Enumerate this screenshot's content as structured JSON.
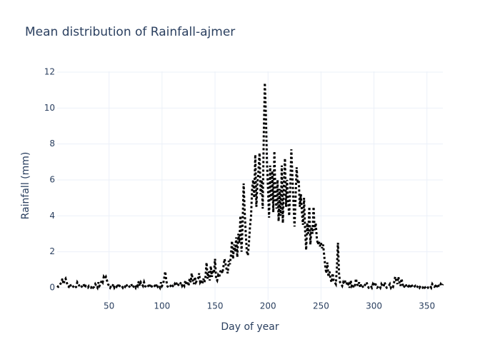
{
  "chart_data": {
    "type": "line",
    "title": "Mean distribution of Rainfall-ajmer",
    "x_label": "Day of year",
    "y_label": "Rainfall (mm)",
    "color": "#000000",
    "dash": "dot",
    "grid": true,
    "xlim": [
      1,
      365
    ],
    "ylim": [
      -0.68,
      12.04
    ],
    "xticks": [
      50,
      100,
      150,
      200,
      250,
      300,
      350
    ],
    "yticks": [
      0,
      2,
      4,
      6,
      8,
      10,
      12
    ],
    "x": [
      1,
      2,
      3,
      4,
      5,
      6,
      7,
      8,
      9,
      10,
      11,
      12,
      13,
      14,
      15,
      16,
      17,
      18,
      19,
      20,
      21,
      22,
      23,
      24,
      25,
      26,
      27,
      28,
      29,
      30,
      31,
      32,
      33,
      34,
      35,
      36,
      37,
      38,
      39,
      40,
      41,
      42,
      43,
      44,
      45,
      46,
      47,
      48,
      49,
      50,
      51,
      52,
      53,
      54,
      55,
      56,
      57,
      58,
      59,
      60,
      61,
      62,
      63,
      64,
      65,
      66,
      67,
      68,
      69,
      70,
      71,
      72,
      73,
      74,
      75,
      76,
      77,
      78,
      79,
      80,
      81,
      82,
      83,
      84,
      85,
      86,
      87,
      88,
      89,
      90,
      91,
      92,
      93,
      94,
      95,
      96,
      97,
      98,
      99,
      100,
      101,
      102,
      103,
      104,
      105,
      106,
      107,
      108,
      109,
      110,
      111,
      112,
      113,
      114,
      115,
      116,
      117,
      118,
      119,
      120,
      121,
      122,
      123,
      124,
      125,
      126,
      127,
      128,
      129,
      130,
      131,
      132,
      133,
      134,
      135,
      136,
      137,
      138,
      139,
      140,
      141,
      142,
      143,
      144,
      145,
      146,
      147,
      148,
      149,
      150,
      151,
      152,
      153,
      154,
      155,
      156,
      157,
      158,
      159,
      160,
      161,
      162,
      163,
      164,
      165,
      166,
      167,
      168,
      169,
      170,
      171,
      172,
      173,
      174,
      175,
      176,
      177,
      178,
      179,
      180,
      181,
      182,
      183,
      184,
      185,
      186,
      187,
      188,
      189,
      190,
      191,
      192,
      193,
      194,
      195,
      196,
      197,
      198,
      199,
      200,
      201,
      202,
      203,
      204,
      205,
      206,
      207,
      208,
      209,
      210,
      211,
      212,
      213,
      214,
      215,
      216,
      217,
      218,
      219,
      220,
      221,
      222,
      223,
      224,
      225,
      226,
      227,
      228,
      229,
      230,
      231,
      232,
      233,
      234,
      235,
      236,
      237,
      238,
      239,
      240,
      241,
      242,
      243,
      244,
      245,
      246,
      247,
      248,
      249,
      250,
      251,
      252,
      253,
      254,
      255,
      256,
      257,
      258,
      259,
      260,
      261,
      262,
      263,
      264,
      265,
      266,
      267,
      268,
      269,
      270,
      271,
      272,
      273,
      274,
      275,
      276,
      277,
      278,
      279,
      280,
      281,
      282,
      283,
      284,
      285,
      286,
      287,
      288,
      289,
      290,
      291,
      292,
      293,
      294,
      295,
      296,
      297,
      298,
      299,
      300,
      301,
      302,
      303,
      304,
      305,
      306,
      307,
      308,
      309,
      310,
      311,
      312,
      313,
      314,
      315,
      316,
      317,
      318,
      319,
      320,
      321,
      322,
      323,
      324,
      325,
      326,
      327,
      328,
      329,
      330,
      331,
      332,
      333,
      334,
      335,
      336,
      337,
      338,
      339,
      340,
      341,
      342,
      343,
      344,
      345,
      346,
      347,
      348,
      349,
      350,
      351,
      352,
      353,
      354,
      355,
      356,
      357,
      358,
      359,
      360,
      361,
      362,
      363,
      364,
      365
    ],
    "values": [
      0.1,
      0.05,
      0.1,
      0.2,
      0.3,
      0.5,
      0.2,
      0.4,
      0.5,
      0.3,
      0.1,
      0.05,
      0.2,
      0.1,
      0.0,
      0.05,
      0.1,
      0.0,
      0.05,
      0.3,
      0.2,
      0.1,
      0.0,
      0.05,
      0.1,
      0.2,
      0.0,
      0.1,
      0.05,
      0.0,
      0.1,
      0.05,
      0.0,
      0.1,
      0.0,
      0.05,
      0.2,
      0.1,
      0.0,
      0.3,
      0.1,
      0.2,
      0.4,
      0.3,
      0.6,
      0.5,
      0.6,
      0.4,
      0.2,
      0.1,
      0.0,
      0.1,
      0.05,
      0.2,
      0.0,
      0.1,
      0.05,
      0.2,
      0.0,
      0.1,
      0.05,
      0.1,
      0.0,
      0.1,
      0.05,
      0.2,
      0.1,
      0.0,
      0.05,
      0.1,
      0.2,
      0.0,
      0.05,
      0.1,
      0.0,
      0.2,
      0.1,
      0.35,
      0.1,
      0.3,
      0.2,
      0.1,
      0.3,
      0.1,
      0.0,
      0.05,
      0.1,
      0.0,
      0.2,
      0.1,
      0.0,
      0.05,
      0.1,
      0.0,
      0.2,
      0.05,
      0.1,
      0.0,
      0.3,
      0.1,
      0.2,
      0.5,
      0.9,
      0.4,
      0.1,
      0.0,
      0.05,
      0.1,
      0.0,
      0.1,
      0.05,
      0.2,
      0.1,
      0.3,
      0.2,
      0.1,
      0.2,
      0.3,
      0.1,
      0.2,
      0.1,
      0.4,
      0.2,
      0.3,
      0.1,
      0.5,
      0.3,
      0.8,
      0.4,
      0.2,
      0.6,
      0.3,
      0.4,
      0.5,
      0.8,
      0.3,
      0.4,
      0.2,
      0.5,
      0.3,
      0.6,
      1.4,
      0.5,
      0.9,
      0.4,
      1.2,
      0.6,
      1.0,
      0.8,
      1.6,
      0.5,
      0.4,
      0.7,
      0.6,
      0.9,
      1.0,
      0.8,
      1.2,
      1.6,
      1.3,
      1.0,
      0.8,
      1.5,
      1.3,
      1.8,
      2.6,
      1.6,
      2.4,
      2.0,
      2.8,
      1.7,
      3.0,
      2.5,
      4.0,
      2.0,
      3.5,
      5.8,
      4.2,
      3.0,
      2.0,
      1.8,
      2.5,
      3.4,
      4.0,
      5.5,
      6.0,
      5.0,
      7.4,
      4.5,
      5.8,
      6.5,
      7.5,
      5.2,
      6.0,
      4.4,
      8.5,
      11.4,
      9.6,
      7.0,
      5.5,
      3.9,
      6.8,
      4.8,
      6.5,
      4.2,
      7.6,
      5.0,
      4.4,
      6.0,
      3.7,
      5.5,
      4.0,
      6.8,
      3.6,
      5.8,
      7.2,
      4.5,
      6.0,
      4.8,
      4.0,
      5.6,
      7.7,
      6.2,
      4.8,
      3.4,
      5.0,
      6.7,
      5.8,
      6.0,
      4.5,
      5.2,
      4.2,
      3.5,
      5.0,
      3.2,
      2.1,
      3.6,
      3.0,
      4.5,
      2.4,
      3.4,
      3.0,
      4.5,
      3.2,
      3.6,
      2.8,
      2.4,
      2.6,
      2.3,
      2.5,
      2.2,
      2.4,
      1.8,
      1.2,
      0.8,
      1.4,
      0.6,
      0.9,
      0.5,
      0.3,
      0.8,
      0.4,
      0.3,
      0.2,
      1.1,
      2.5,
      0.8,
      0.3,
      0.2,
      0.1,
      0.3,
      0.2,
      0.4,
      0.3,
      0.1,
      0.2,
      0.0,
      0.4,
      0.1,
      0.2,
      0.0,
      0.1,
      0.5,
      0.2,
      0.1,
      0.3,
      0.0,
      0.2,
      0.1,
      0.0,
      0.1,
      0.2,
      0.3,
      0.1,
      0.0,
      0.05,
      0.1,
      0.0,
      0.2,
      0.1,
      0.3,
      0.1,
      0.0,
      0.05,
      0.1,
      0.0,
      0.2,
      0.1,
      0.05,
      0.3,
      0.1,
      0.0,
      0.05,
      0.1,
      0.2,
      0.0,
      0.1,
      0.05,
      0.3,
      0.6,
      0.4,
      0.2,
      0.6,
      0.3,
      0.1,
      0.5,
      0.2,
      0.0,
      0.1,
      0.2,
      0.0,
      0.05,
      0.1,
      0.0,
      0.2,
      0.1,
      0.0,
      0.05,
      0.1,
      0.0,
      0.05,
      0.1,
      0.0,
      0.1,
      0.05,
      0.0,
      0.1,
      0.0,
      0.05,
      0.1,
      0.0,
      0.05,
      0.1,
      0.0,
      0.2,
      0.1,
      0.05,
      0.1,
      0.0,
      0.2,
      0.1,
      0.05,
      0.2,
      0.1,
      0.2
    ]
  }
}
